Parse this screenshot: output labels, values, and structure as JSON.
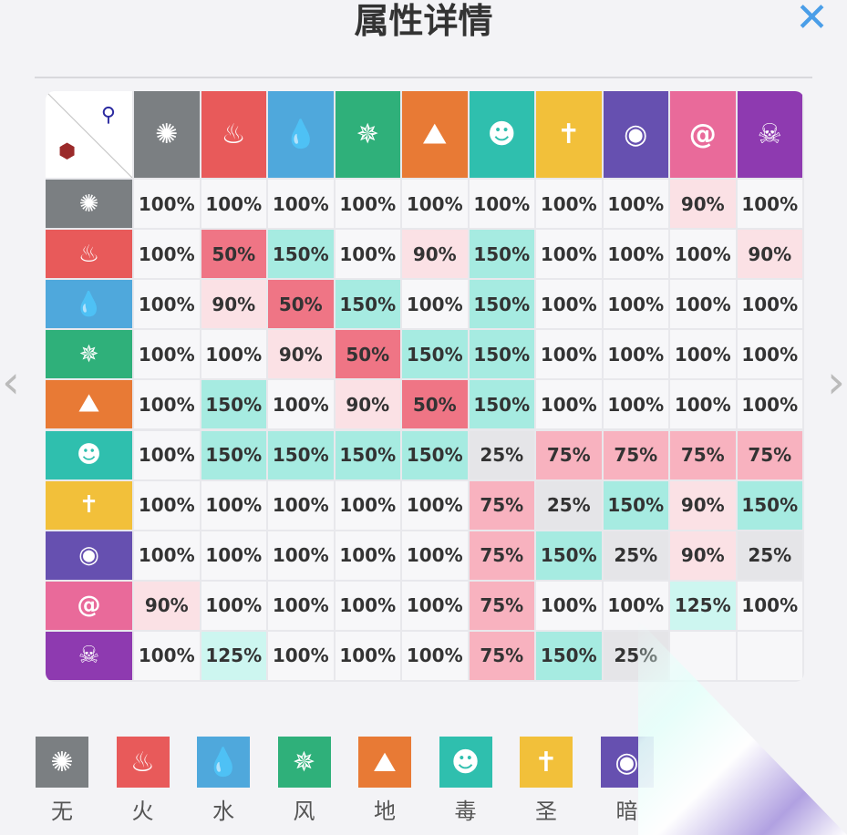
{
  "title": "属性详情",
  "elements": [
    {
      "name": "无",
      "color": "#7b7f82",
      "icon": "swirl-icon",
      "glyph": "✺"
    },
    {
      "name": "火",
      "color": "#e85a5a",
      "icon": "fire-icon",
      "glyph": "♨"
    },
    {
      "name": "水",
      "color": "#4fa8dc",
      "icon": "water-drop-icon",
      "glyph": "💧"
    },
    {
      "name": "风",
      "color": "#2fb07a",
      "icon": "wind-fan-icon",
      "glyph": "✵"
    },
    {
      "name": "地",
      "color": "#e87a35",
      "icon": "earth-peak-icon",
      "glyph": "⛰"
    },
    {
      "name": "毒",
      "color": "#2fbfae",
      "icon": "frog-icon",
      "glyph": "☻"
    },
    {
      "name": "圣",
      "color": "#f2c03a",
      "icon": "holy-wings-icon",
      "glyph": "✝"
    },
    {
      "name": "暗",
      "color": "#6650b0",
      "icon": "eye-icon",
      "glyph": "◉"
    },
    {
      "name": "",
      "color": "#e96a9a",
      "icon": "spiral-icon",
      "glyph": "@"
    },
    {
      "name": "",
      "color": "#8e3ab0",
      "icon": "skull-icon",
      "glyph": "☠"
    }
  ],
  "matrix": [
    [
      "100%",
      "100%",
      "100%",
      "100%",
      "100%",
      "100%",
      "100%",
      "100%",
      "90%",
      "100%"
    ],
    [
      "100%",
      "50%",
      "150%",
      "100%",
      "90%",
      "150%",
      "100%",
      "100%",
      "100%",
      "90%"
    ],
    [
      "100%",
      "90%",
      "50%",
      "150%",
      "100%",
      "150%",
      "100%",
      "100%",
      "100%",
      "100%"
    ],
    [
      "100%",
      "100%",
      "90%",
      "50%",
      "150%",
      "150%",
      "100%",
      "100%",
      "100%",
      "100%"
    ],
    [
      "100%",
      "150%",
      "100%",
      "90%",
      "50%",
      "150%",
      "100%",
      "100%",
      "100%",
      "100%"
    ],
    [
      "100%",
      "150%",
      "150%",
      "150%",
      "150%",
      "25%",
      "75%",
      "75%",
      "75%",
      "75%"
    ],
    [
      "100%",
      "100%",
      "100%",
      "100%",
      "100%",
      "75%",
      "25%",
      "150%",
      "90%",
      "150%"
    ],
    [
      "100%",
      "100%",
      "100%",
      "100%",
      "100%",
      "75%",
      "150%",
      "25%",
      "90%",
      "25%"
    ],
    [
      "90%",
      "100%",
      "100%",
      "100%",
      "100%",
      "75%",
      "100%",
      "100%",
      "125%",
      "100%"
    ],
    [
      "100%",
      "125%",
      "100%",
      "100%",
      "100%",
      "75%",
      "150%",
      "25%",
      "",
      ""
    ]
  ],
  "cell_colors": {
    "100%": "#f7f7f9",
    "90%": "#fbe1e5",
    "50%": "#ef7585",
    "150%": "#a6ebe1",
    "125%": "#cdf6f0",
    "75%": "#f8b2bf",
    "25%": "#e5e5e8",
    "": "#f7f7f9"
  },
  "legend_count": 8,
  "corner": {
    "attack_icon": "sword-icon",
    "defense_icon": "shield-icon"
  }
}
